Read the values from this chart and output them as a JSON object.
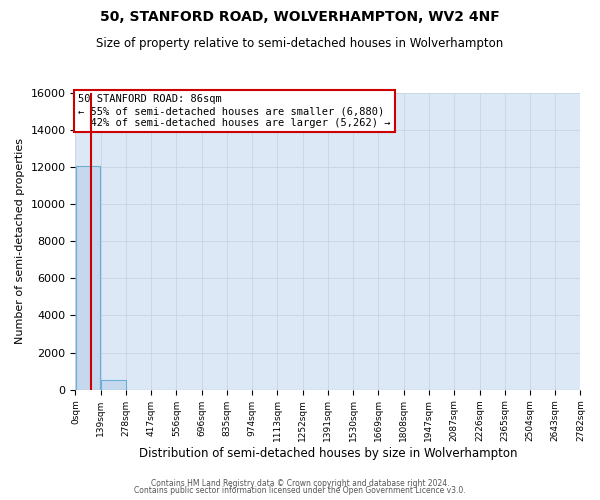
{
  "title": "50, STANFORD ROAD, WOLVERHAMPTON, WV2 4NF",
  "subtitle": "Size of property relative to semi-detached houses in Wolverhampton",
  "xlabel": "Distribution of semi-detached houses by size in Wolverhampton",
  "ylabel": "Number of semi-detached properties",
  "bar_edges": [
    0,
    139,
    278,
    417,
    556,
    696,
    835,
    974,
    1113,
    1252,
    1391,
    1530,
    1669,
    1808,
    1947,
    2087,
    2226,
    2365,
    2504,
    2643,
    2782
  ],
  "bar_values": [
    12050,
    520,
    0,
    0,
    0,
    0,
    0,
    0,
    0,
    0,
    0,
    0,
    0,
    0,
    0,
    0,
    0,
    0,
    0,
    0
  ],
  "bar_color": "#c5d8ed",
  "bar_edge_color": "#6baed6",
  "property_line_x": 86,
  "property_line_color": "#cc0000",
  "ylim": [
    0,
    16000
  ],
  "yticks": [
    0,
    2000,
    4000,
    6000,
    8000,
    10000,
    12000,
    14000,
    16000
  ],
  "xtick_labels": [
    "0sqm",
    "139sqm",
    "278sqm",
    "417sqm",
    "556sqm",
    "696sqm",
    "835sqm",
    "974sqm",
    "1113sqm",
    "1252sqm",
    "1391sqm",
    "1530sqm",
    "1669sqm",
    "1808sqm",
    "1947sqm",
    "2087sqm",
    "2226sqm",
    "2365sqm",
    "2504sqm",
    "2643sqm",
    "2782sqm"
  ],
  "ann_line1": "50 STANFORD ROAD: 86sqm",
  "ann_line2": "← 55% of semi-detached houses are smaller (6,880)",
  "ann_line3": "  42% of semi-detached houses are larger (5,262) →",
  "annotation_box_color": "#ffffff",
  "annotation_box_edge_color": "#cc0000",
  "grid_color": "#c8d4e0",
  "background_color": "#dce8f5",
  "footer1": "Contains HM Land Registry data © Crown copyright and database right 2024.",
  "footer2": "Contains public sector information licensed under the Open Government Licence v3.0."
}
